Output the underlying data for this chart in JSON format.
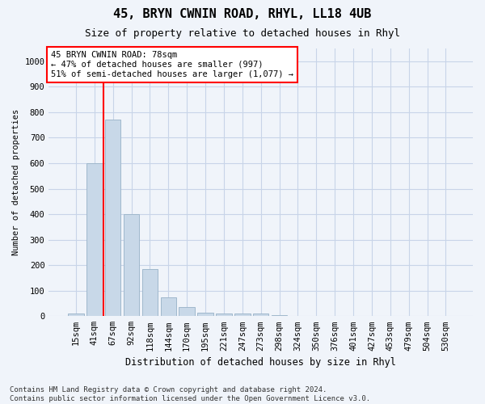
{
  "title1": "45, BRYN CWNIN ROAD, RHYL, LL18 4UB",
  "title2": "Size of property relative to detached houses in Rhyl",
  "xlabel": "Distribution of detached houses by size in Rhyl",
  "ylabel": "Number of detached properties",
  "footnote": "Contains HM Land Registry data © Crown copyright and database right 2024.\nContains public sector information licensed under the Open Government Licence v3.0.",
  "categories": [
    "15sqm",
    "41sqm",
    "67sqm",
    "92sqm",
    "118sqm",
    "144sqm",
    "170sqm",
    "195sqm",
    "221sqm",
    "247sqm",
    "273sqm",
    "298sqm",
    "324sqm",
    "350sqm",
    "376sqm",
    "401sqm",
    "427sqm",
    "453sqm",
    "479sqm",
    "504sqm",
    "530sqm"
  ],
  "values": [
    12,
    600,
    770,
    400,
    185,
    75,
    35,
    15,
    10,
    10,
    10,
    5,
    0,
    0,
    0,
    0,
    0,
    0,
    0,
    0,
    0
  ],
  "bar_color": "#c8d8e8",
  "bar_edge_color": "#a0b8cc",
  "vline_x": 1.5,
  "vline_color": "red",
  "annotation_text": "45 BRYN CWNIN ROAD: 78sqm\n← 47% of detached houses are smaller (997)\n51% of semi-detached houses are larger (1,077) →",
  "annotation_box_color": "white",
  "annotation_box_edge": "red",
  "ylim": [
    0,
    1050
  ],
  "yticks": [
    0,
    100,
    200,
    300,
    400,
    500,
    600,
    700,
    800,
    900,
    1000
  ],
  "bg_color": "#f0f4fa",
  "grid_color": "#c8d4e8",
  "title1_fontsize": 11,
  "title2_fontsize": 9,
  "xlabel_fontsize": 8.5,
  "ylabel_fontsize": 7.5,
  "tick_fontsize": 7.5,
  "annot_fontsize": 7.5,
  "footnote_fontsize": 6.5
}
